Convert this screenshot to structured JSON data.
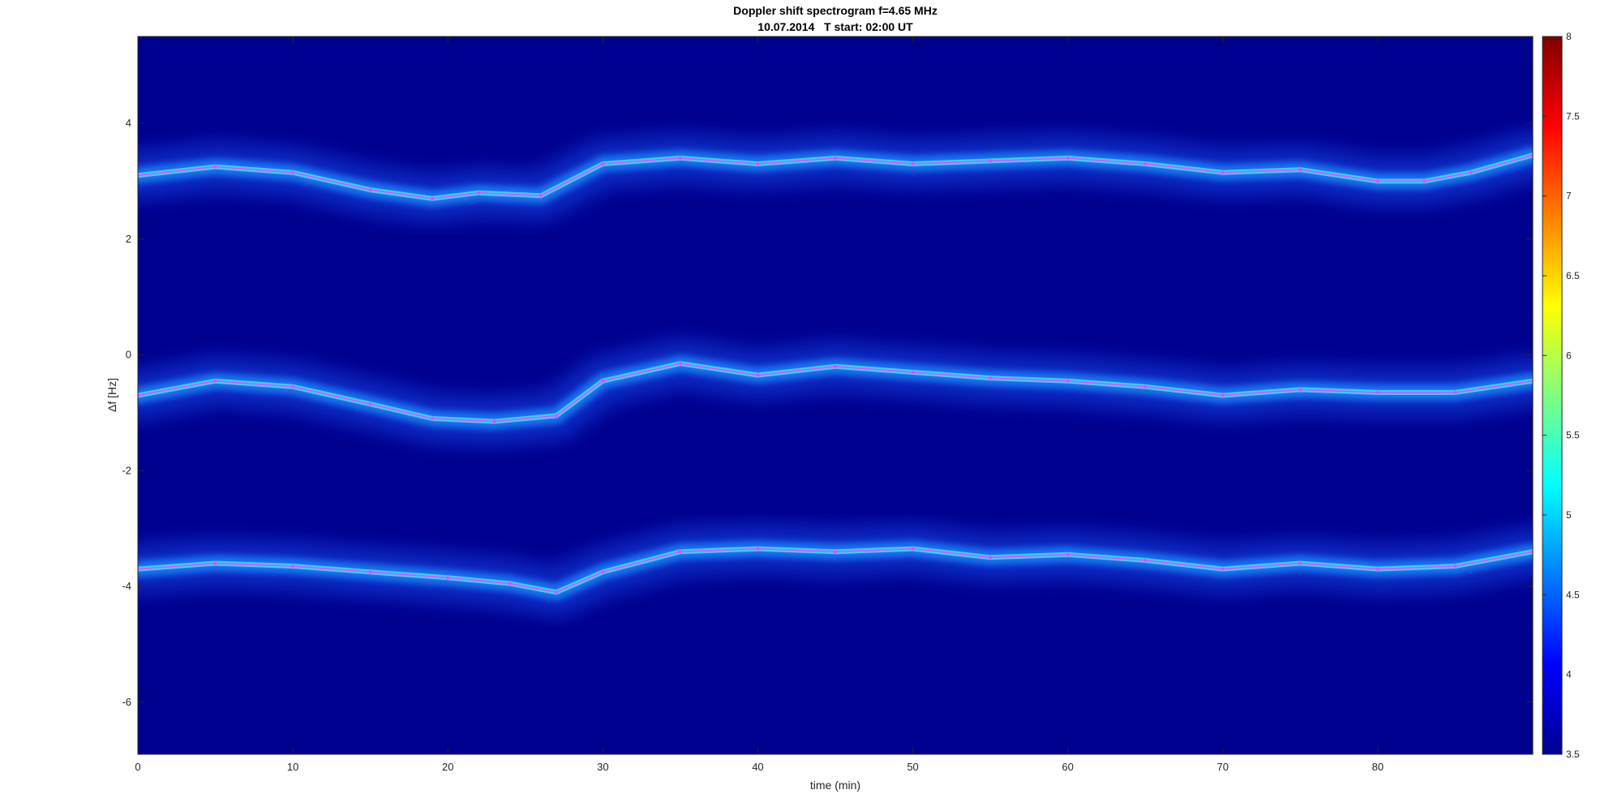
{
  "chart_data": {
    "type": "heatmap",
    "title": "Doppler shift spectrogram f=4.65 MHz",
    "subtitle": "10.07.2014   T start: 02:00 UT",
    "xlabel": "time (min)",
    "ylabel": "Δf [Hz]",
    "xlim": [
      0,
      90
    ],
    "ylim": [
      -6.9,
      5.5
    ],
    "xticks": [
      0,
      10,
      20,
      30,
      40,
      50,
      60,
      70,
      80
    ],
    "yticks": [
      4,
      2,
      0,
      -2,
      -4,
      -6
    ],
    "colormap": "jet",
    "background_color": "#00008f",
    "grid": false,
    "colorbar": {
      "range": [
        3.5,
        8
      ],
      "ticks": [
        "8",
        "7.5",
        "7",
        "6.5",
        "6",
        "5.5",
        "5",
        "4.5",
        "4",
        "3.5"
      ]
    },
    "series": [
      {
        "x": [
          0,
          5,
          10,
          15,
          19,
          22,
          26,
          30,
          35,
          40,
          45,
          50,
          55,
          60,
          65,
          70,
          75,
          80,
          83,
          86,
          90
        ],
        "values": [
          3.1,
          3.25,
          3.15,
          2.85,
          2.7,
          2.8,
          2.75,
          3.3,
          3.4,
          3.3,
          3.4,
          3.3,
          3.35,
          3.4,
          3.3,
          3.15,
          3.2,
          3.0,
          3.0,
          3.15,
          3.45
        ],
        "color": "#ff3cff"
      },
      {
        "x": [
          0,
          5,
          10,
          15,
          19,
          23,
          27,
          30,
          35,
          40,
          45,
          50,
          55,
          60,
          65,
          70,
          75,
          80,
          85,
          90
        ],
        "values": [
          -0.7,
          -0.45,
          -0.55,
          -0.85,
          -1.1,
          -1.15,
          -1.05,
          -0.45,
          -0.15,
          -0.35,
          -0.2,
          -0.3,
          -0.4,
          -0.45,
          -0.55,
          -0.7,
          -0.6,
          -0.65,
          -0.65,
          -0.45
        ],
        "color": "#ff3cff"
      },
      {
        "x": [
          0,
          5,
          10,
          15,
          20,
          24,
          27,
          30,
          35,
          40,
          45,
          50,
          55,
          60,
          65,
          70,
          75,
          80,
          85,
          90
        ],
        "values": [
          -3.7,
          -3.6,
          -3.65,
          -3.75,
          -3.85,
          -3.95,
          -4.1,
          -3.75,
          -3.4,
          -3.35,
          -3.4,
          -3.35,
          -3.5,
          -3.45,
          -3.55,
          -3.7,
          -3.6,
          -3.7,
          -3.65,
          -3.4
        ],
        "color": "#ff3cff"
      }
    ]
  }
}
